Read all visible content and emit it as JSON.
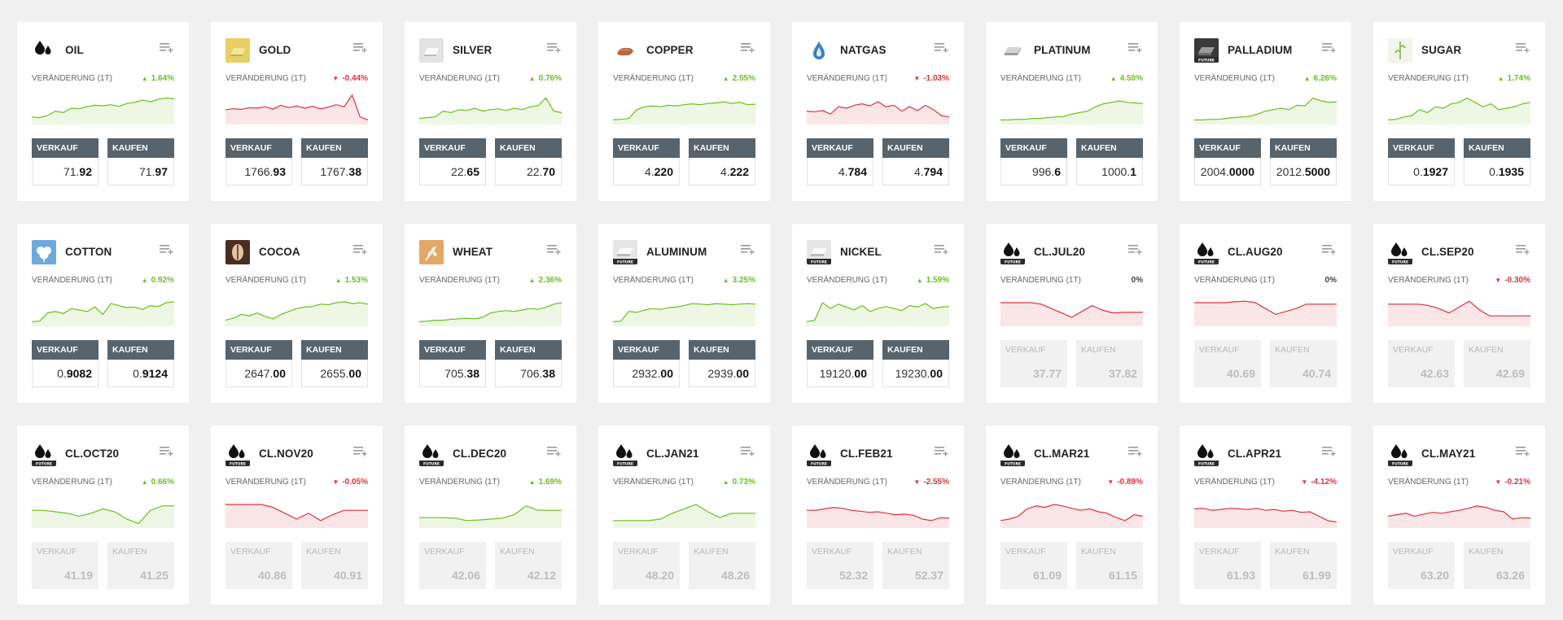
{
  "labels": {
    "change": "VERÄNDERUNG (1T)",
    "sell": "VERKAUF",
    "buy": "KAUFEN"
  },
  "colors": {
    "up": "#6cbf1f",
    "down": "#e0313d",
    "button": "#57636d",
    "background": "#f0f0f0"
  },
  "cards": [
    {
      "name": "OIL",
      "icon": "oil-icon",
      "change": "1.64%",
      "dir": "up",
      "sell": [
        "71.",
        "92"
      ],
      "buy": [
        "71.",
        "97"
      ],
      "trend": [
        0.2,
        0.18,
        0.25,
        0.4,
        0.35,
        0.5,
        0.48,
        0.55,
        0.6,
        0.58,
        0.62,
        0.56,
        0.66,
        0.7,
        0.78,
        0.72,
        0.8,
        0.85,
        0.82
      ],
      "disabled": false
    },
    {
      "name": "GOLD",
      "icon": "gold-icon",
      "change": "-0.44%",
      "dir": "down",
      "sell": [
        "1766.",
        "93"
      ],
      "buy": [
        "1767.",
        "38"
      ],
      "trend": [
        0.45,
        0.48,
        0.46,
        0.52,
        0.5,
        0.55,
        0.47,
        0.6,
        0.52,
        0.58,
        0.5,
        0.56,
        0.48,
        0.54,
        0.62,
        0.55,
        0.95,
        0.2,
        0.1
      ],
      "disabled": false
    },
    {
      "name": "SILVER",
      "icon": "silver-icon",
      "change": "0.76%",
      "dir": "up",
      "sell": [
        "22.",
        "65"
      ],
      "buy": [
        "22.",
        "70"
      ],
      "trend": [
        0.15,
        0.18,
        0.2,
        0.4,
        0.35,
        0.45,
        0.42,
        0.5,
        0.4,
        0.45,
        0.48,
        0.42,
        0.5,
        0.45,
        0.55,
        0.58,
        0.85,
        0.4,
        0.35
      ],
      "disabled": false
    },
    {
      "name": "COPPER",
      "icon": "copper-icon",
      "change": "2.55%",
      "dir": "up",
      "sell": [
        "4.",
        "220"
      ],
      "buy": [
        "4.",
        "222"
      ],
      "trend": [
        0.1,
        0.12,
        0.15,
        0.45,
        0.55,
        0.58,
        0.55,
        0.6,
        0.58,
        0.62,
        0.65,
        0.62,
        0.66,
        0.68,
        0.72,
        0.66,
        0.7,
        0.62,
        0.64
      ],
      "disabled": false
    },
    {
      "name": "NATGAS",
      "icon": "natgas-icon",
      "change": "-1.03%",
      "dir": "down",
      "sell": [
        "4.",
        "784"
      ],
      "buy": [
        "4.",
        "794"
      ],
      "trend": [
        0.4,
        0.38,
        0.42,
        0.3,
        0.55,
        0.5,
        0.6,
        0.65,
        0.58,
        0.72,
        0.55,
        0.6,
        0.4,
        0.55,
        0.42,
        0.6,
        0.45,
        0.25,
        0.2
      ],
      "disabled": false
    },
    {
      "name": "PLATINUM",
      "icon": "platinum-icon",
      "change": "4.50%",
      "dir": "up",
      "sell": [
        "996.",
        "6"
      ],
      "buy": [
        "1000.",
        "1"
      ],
      "trend": [
        0.1,
        0.1,
        0.12,
        0.12,
        0.15,
        0.15,
        0.18,
        0.2,
        0.22,
        0.3,
        0.35,
        0.4,
        0.55,
        0.65,
        0.7,
        0.75,
        0.7,
        0.68,
        0.66
      ],
      "disabled": false
    },
    {
      "name": "PALLADIUM",
      "icon": "palladium-icon",
      "change": "6.26%",
      "dir": "up",
      "sell": [
        "2004.",
        "0000"
      ],
      "buy": [
        "2012.",
        "5000"
      ],
      "trend": [
        0.1,
        0.1,
        0.12,
        0.12,
        0.15,
        0.18,
        0.2,
        0.22,
        0.3,
        0.4,
        0.45,
        0.5,
        0.45,
        0.6,
        0.58,
        0.85,
        0.75,
        0.7,
        0.72
      ],
      "disabled": false
    },
    {
      "name": "SUGAR",
      "icon": "sugar-icon",
      "change": "1.74%",
      "dir": "up",
      "sell": [
        "0.",
        "1927"
      ],
      "buy": [
        "0.",
        "1935"
      ],
      "trend": [
        0.1,
        0.12,
        0.2,
        0.25,
        0.45,
        0.35,
        0.55,
        0.5,
        0.65,
        0.7,
        0.85,
        0.7,
        0.55,
        0.65,
        0.45,
        0.5,
        0.55,
        0.65,
        0.7
      ],
      "disabled": false
    },
    {
      "name": "COTTON",
      "icon": "cotton-icon",
      "change": "0.92%",
      "dir": "up",
      "sell": [
        "0.",
        "9082"
      ],
      "buy": [
        "0.",
        "9124"
      ],
      "trend": [
        0.1,
        0.12,
        0.4,
        0.45,
        0.38,
        0.55,
        0.5,
        0.45,
        0.6,
        0.35,
        0.72,
        0.65,
        0.58,
        0.6,
        0.52,
        0.65,
        0.62,
        0.75,
        0.78
      ],
      "disabled": false
    },
    {
      "name": "COCOA",
      "icon": "cocoa-icon",
      "change": "1.53%",
      "dir": "up",
      "sell": [
        "2647.",
        "00"
      ],
      "buy": [
        "2655.",
        "00"
      ],
      "trend": [
        0.15,
        0.22,
        0.35,
        0.3,
        0.4,
        0.28,
        0.2,
        0.35,
        0.45,
        0.55,
        0.6,
        0.62,
        0.7,
        0.68,
        0.75,
        0.78,
        0.72,
        0.75,
        0.7
      ],
      "disabled": false
    },
    {
      "name": "WHEAT",
      "icon": "wheat-icon",
      "change": "2.36%",
      "dir": "up",
      "sell": [
        "705.",
        "38"
      ],
      "buy": [
        "706.",
        "38"
      ],
      "trend": [
        0.1,
        0.12,
        0.15,
        0.15,
        0.18,
        0.2,
        0.22,
        0.2,
        0.25,
        0.4,
        0.45,
        0.48,
        0.45,
        0.5,
        0.55,
        0.52,
        0.6,
        0.7,
        0.75
      ],
      "disabled": false
    },
    {
      "name": "ALUMINUM",
      "icon": "aluminum-icon",
      "change": "3.25%",
      "dir": "up",
      "sell": [
        "2932.",
        "00"
      ],
      "buy": [
        "2939.",
        "00"
      ],
      "trend": [
        0.1,
        0.12,
        0.45,
        0.42,
        0.5,
        0.55,
        0.52,
        0.58,
        0.6,
        0.65,
        0.72,
        0.7,
        0.68,
        0.72,
        0.7,
        0.68,
        0.7,
        0.72,
        0.7
      ],
      "disabled": false
    },
    {
      "name": "NICKEL",
      "icon": "nickel-icon",
      "change": "1.59%",
      "dir": "up",
      "sell": [
        "19120.",
        "00"
      ],
      "buy": [
        "19230.",
        "00"
      ],
      "trend": [
        0.1,
        0.15,
        0.75,
        0.55,
        0.7,
        0.6,
        0.5,
        0.65,
        0.45,
        0.55,
        0.62,
        0.55,
        0.48,
        0.65,
        0.6,
        0.72,
        0.55,
        0.6,
        0.62
      ],
      "disabled": false
    },
    {
      "name": "CL.JUL20",
      "icon": "future-oil-icon",
      "change": "0%",
      "dir": "flat",
      "sell": [
        "37.",
        "77"
      ],
      "buy": [
        "37.",
        "82"
      ],
      "trend": [
        0.75,
        0.75,
        0.75,
        0.75,
        0.7,
        0.55,
        0.4,
        0.25,
        0.45,
        0.65,
        0.5,
        0.4,
        0.42,
        0.42,
        0.42
      ],
      "disabled": true
    },
    {
      "name": "CL.AUG20",
      "icon": "future-oil-icon",
      "change": "0%",
      "dir": "flat",
      "sell": [
        "40.",
        "69"
      ],
      "buy": [
        "40.",
        "74"
      ],
      "trend": [
        0.75,
        0.75,
        0.75,
        0.75,
        0.78,
        0.8,
        0.75,
        0.55,
        0.35,
        0.45,
        0.55,
        0.7,
        0.7,
        0.7,
        0.7
      ],
      "disabled": true
    },
    {
      "name": "CL.SEP20",
      "icon": "future-oil-icon",
      "change": "-0.30%",
      "dir": "down",
      "sell": [
        "42.",
        "63"
      ],
      "buy": [
        "42.",
        "69"
      ],
      "trend": [
        0.7,
        0.7,
        0.7,
        0.7,
        0.65,
        0.55,
        0.4,
        0.6,
        0.8,
        0.5,
        0.3,
        0.3,
        0.3,
        0.3,
        0.3
      ],
      "disabled": true
    },
    {
      "name": "CL.OCT20",
      "icon": "future-oil-icon",
      "change": "0.66%",
      "dir": "up",
      "sell": [
        "41.",
        "19"
      ],
      "buy": [
        "41.",
        "25"
      ],
      "trend": [
        0.55,
        0.55,
        0.5,
        0.45,
        0.35,
        0.45,
        0.6,
        0.5,
        0.25,
        0.1,
        0.55,
        0.7,
        0.7
      ],
      "disabled": true
    },
    {
      "name": "CL.NOV20",
      "icon": "future-oil-icon",
      "change": "-0.05%",
      "dir": "down",
      "sell": [
        "40.",
        "86"
      ],
      "buy": [
        "40.",
        "91"
      ],
      "trend": [
        0.75,
        0.75,
        0.75,
        0.75,
        0.65,
        0.45,
        0.25,
        0.45,
        0.2,
        0.4,
        0.55,
        0.55,
        0.55
      ],
      "disabled": true
    },
    {
      "name": "CL.DEC20",
      "icon": "future-oil-icon",
      "change": "1.69%",
      "dir": "up",
      "sell": [
        "42.",
        "06"
      ],
      "buy": [
        "42.",
        "12"
      ],
      "trend": [
        0.3,
        0.3,
        0.3,
        0.28,
        0.2,
        0.22,
        0.25,
        0.28,
        0.4,
        0.7,
        0.55,
        0.55,
        0.55
      ],
      "disabled": true
    },
    {
      "name": "CL.JAN21",
      "icon": "future-oil-icon",
      "change": "0.73%",
      "dir": "up",
      "sell": [
        "48.",
        "20"
      ],
      "buy": [
        "48.",
        "26"
      ],
      "trend": [
        0.2,
        0.2,
        0.2,
        0.2,
        0.25,
        0.45,
        0.6,
        0.75,
        0.5,
        0.3,
        0.45,
        0.45,
        0.45
      ],
      "disabled": true
    },
    {
      "name": "CL.FEB21",
      "icon": "future-oil-icon",
      "change": "-2.55%",
      "dir": "down",
      "sell": [
        "52.",
        "32"
      ],
      "buy": [
        "52.",
        "37"
      ],
      "trend": [
        0.55,
        0.55,
        0.6,
        0.65,
        0.62,
        0.55,
        0.52,
        0.48,
        0.5,
        0.45,
        0.4,
        0.42,
        0.38,
        0.25,
        0.2,
        0.3,
        0.28
      ],
      "disabled": true
    },
    {
      "name": "CL.MAR21",
      "icon": "future-oil-icon",
      "change": "-0.89%",
      "dir": "down",
      "sell": [
        "61.",
        "09"
      ],
      "buy": [
        "61.",
        "15"
      ],
      "trend": [
        0.2,
        0.25,
        0.35,
        0.6,
        0.7,
        0.65,
        0.75,
        0.7,
        0.62,
        0.55,
        0.6,
        0.5,
        0.45,
        0.3,
        0.2,
        0.4,
        0.35
      ],
      "disabled": true
    },
    {
      "name": "CL.APR21",
      "icon": "future-oil-icon",
      "change": "-4.12%",
      "dir": "down",
      "sell": [
        "61.",
        "93"
      ],
      "buy": [
        "61.",
        "99"
      ],
      "trend": [
        0.6,
        0.62,
        0.55,
        0.58,
        0.62,
        0.6,
        0.58,
        0.62,
        0.55,
        0.58,
        0.52,
        0.55,
        0.48,
        0.5,
        0.35,
        0.2,
        0.15
      ],
      "disabled": true
    },
    {
      "name": "CL.MAY21",
      "icon": "future-oil-icon",
      "change": "-0.21%",
      "dir": "down",
      "sell": [
        "63.",
        "20"
      ],
      "buy": [
        "63.",
        "26"
      ],
      "trend": [
        0.35,
        0.4,
        0.45,
        0.35,
        0.42,
        0.48,
        0.45,
        0.5,
        0.55,
        0.62,
        0.7,
        0.65,
        0.55,
        0.5,
        0.25,
        0.3,
        0.28
      ],
      "disabled": true
    }
  ]
}
